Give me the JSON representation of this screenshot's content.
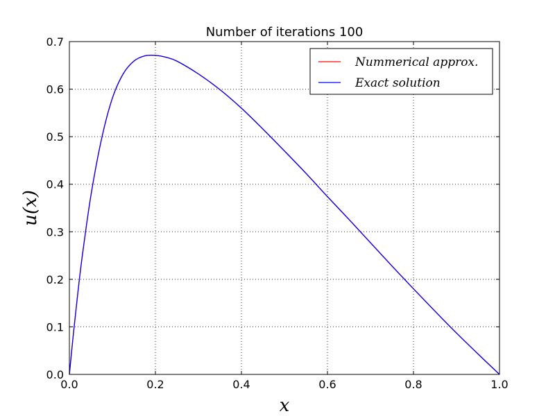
{
  "chart_data": {
    "type": "line",
    "title": "Number of iterations 100",
    "xlabel": "x",
    "ylabel": "u(x)",
    "xlim": [
      0.0,
      1.0
    ],
    "ylim": [
      0.0,
      0.7
    ],
    "xticks": [
      "0.0",
      "0.2",
      "0.4",
      "0.6",
      "0.8",
      "1.0"
    ],
    "yticks": [
      "0.0",
      "0.1",
      "0.2",
      "0.3",
      "0.4",
      "0.5",
      "0.6",
      "0.7"
    ],
    "grid": true,
    "legend_position": "top-right",
    "series": [
      {
        "name": "Nummerical approx.",
        "color": "#ff0000",
        "x": [
          0.0,
          0.01,
          0.02,
          0.03,
          0.05,
          0.075,
          0.1,
          0.125,
          0.15,
          0.175,
          0.2,
          0.225,
          0.25,
          0.3,
          0.35,
          0.4,
          0.45,
          0.5,
          0.55,
          0.6,
          0.65,
          0.7,
          0.75,
          0.8,
          0.85,
          0.9,
          0.95,
          1.0
        ],
        "y": [
          0.0,
          0.091,
          0.174,
          0.249,
          0.376,
          0.496,
          0.581,
          0.632,
          0.659,
          0.67,
          0.671,
          0.667,
          0.659,
          0.632,
          0.599,
          0.56,
          0.516,
          0.47,
          0.423,
          0.374,
          0.326,
          0.277,
          0.228,
          0.18,
          0.133,
          0.087,
          0.043,
          0.0
        ]
      },
      {
        "name": "Exact solution",
        "color": "#0000ff",
        "x": [
          0.0,
          0.01,
          0.02,
          0.03,
          0.05,
          0.075,
          0.1,
          0.125,
          0.15,
          0.175,
          0.2,
          0.225,
          0.25,
          0.3,
          0.35,
          0.4,
          0.45,
          0.5,
          0.55,
          0.6,
          0.65,
          0.7,
          0.75,
          0.8,
          0.85,
          0.9,
          0.95,
          1.0
        ],
        "y": [
          0.0,
          0.091,
          0.174,
          0.249,
          0.376,
          0.496,
          0.581,
          0.632,
          0.659,
          0.67,
          0.671,
          0.667,
          0.659,
          0.632,
          0.599,
          0.56,
          0.516,
          0.47,
          0.423,
          0.374,
          0.326,
          0.277,
          0.228,
          0.18,
          0.133,
          0.087,
          0.043,
          0.0
        ]
      }
    ]
  }
}
